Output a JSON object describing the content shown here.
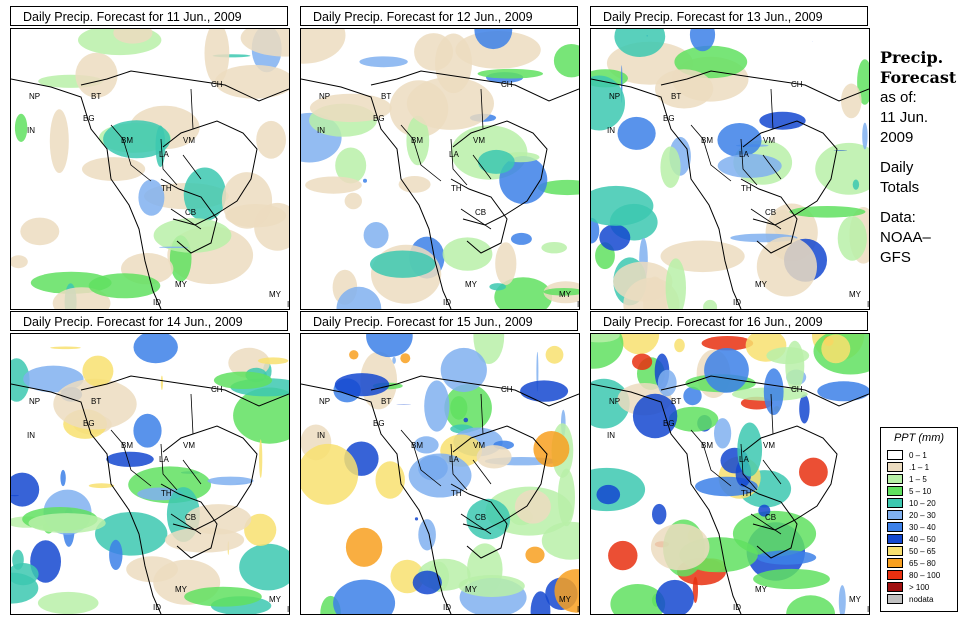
{
  "panels": [
    {
      "title": "Daily Precip. Forecast for  11 Jun., 2009",
      "variant": 0
    },
    {
      "title": "Daily Precip. Forecast for  12 Jun., 2009",
      "variant": 1
    },
    {
      "title": "Daily Precip. Forecast for  13 Jun., 2009",
      "variant": 2
    },
    {
      "title": "Daily Precip. Forecast for  14 Jun., 2009",
      "variant": 3
    },
    {
      "title": "Daily Precip. Forecast for  15 Jun., 2009",
      "variant": 4
    },
    {
      "title": "Daily Precip. Forecast for  16 Jun., 2009",
      "variant": 5
    }
  ],
  "country_labels": [
    "NP",
    "BT",
    "IN",
    "BG",
    "BM",
    "CH",
    "VM",
    "LA",
    "TH",
    "CB",
    "MY",
    "ID",
    "MY",
    "ID"
  ],
  "side": {
    "heading": [
      "Precip.",
      "Forecast"
    ],
    "asof": [
      "as of:",
      "11 Jun.",
      "2009"
    ],
    "totals": [
      "Daily",
      "Totals"
    ],
    "data": [
      "Data:",
      "NOAA–",
      "GFS"
    ]
  },
  "legend": {
    "title": "PPT (mm)",
    "items": [
      {
        "label": "0 – 1",
        "color": "#ffffff"
      },
      {
        "label": ".1 – 1",
        "color": "#ecdcc0"
      },
      {
        "label": "1 – 5",
        "color": "#b8f0a8"
      },
      {
        "label": "5 – 10",
        "color": "#60e060"
      },
      {
        "label": "10 – 20",
        "color": "#3cc8b0"
      },
      {
        "label": "20 – 30",
        "color": "#80b0f0"
      },
      {
        "label": "30 – 40",
        "color": "#3c80e8"
      },
      {
        "label": "40 – 50",
        "color": "#1448d0"
      },
      {
        "label": "50 – 65",
        "color": "#f8e070"
      },
      {
        "label": "65 – 80",
        "color": "#f8a020"
      },
      {
        "label": "80 – 100",
        "color": "#e83010"
      },
      {
        "label": "> 100",
        "color": "#a01010"
      },
      {
        "label": "nodata",
        "color": "#c0c0c0"
      }
    ]
  }
}
